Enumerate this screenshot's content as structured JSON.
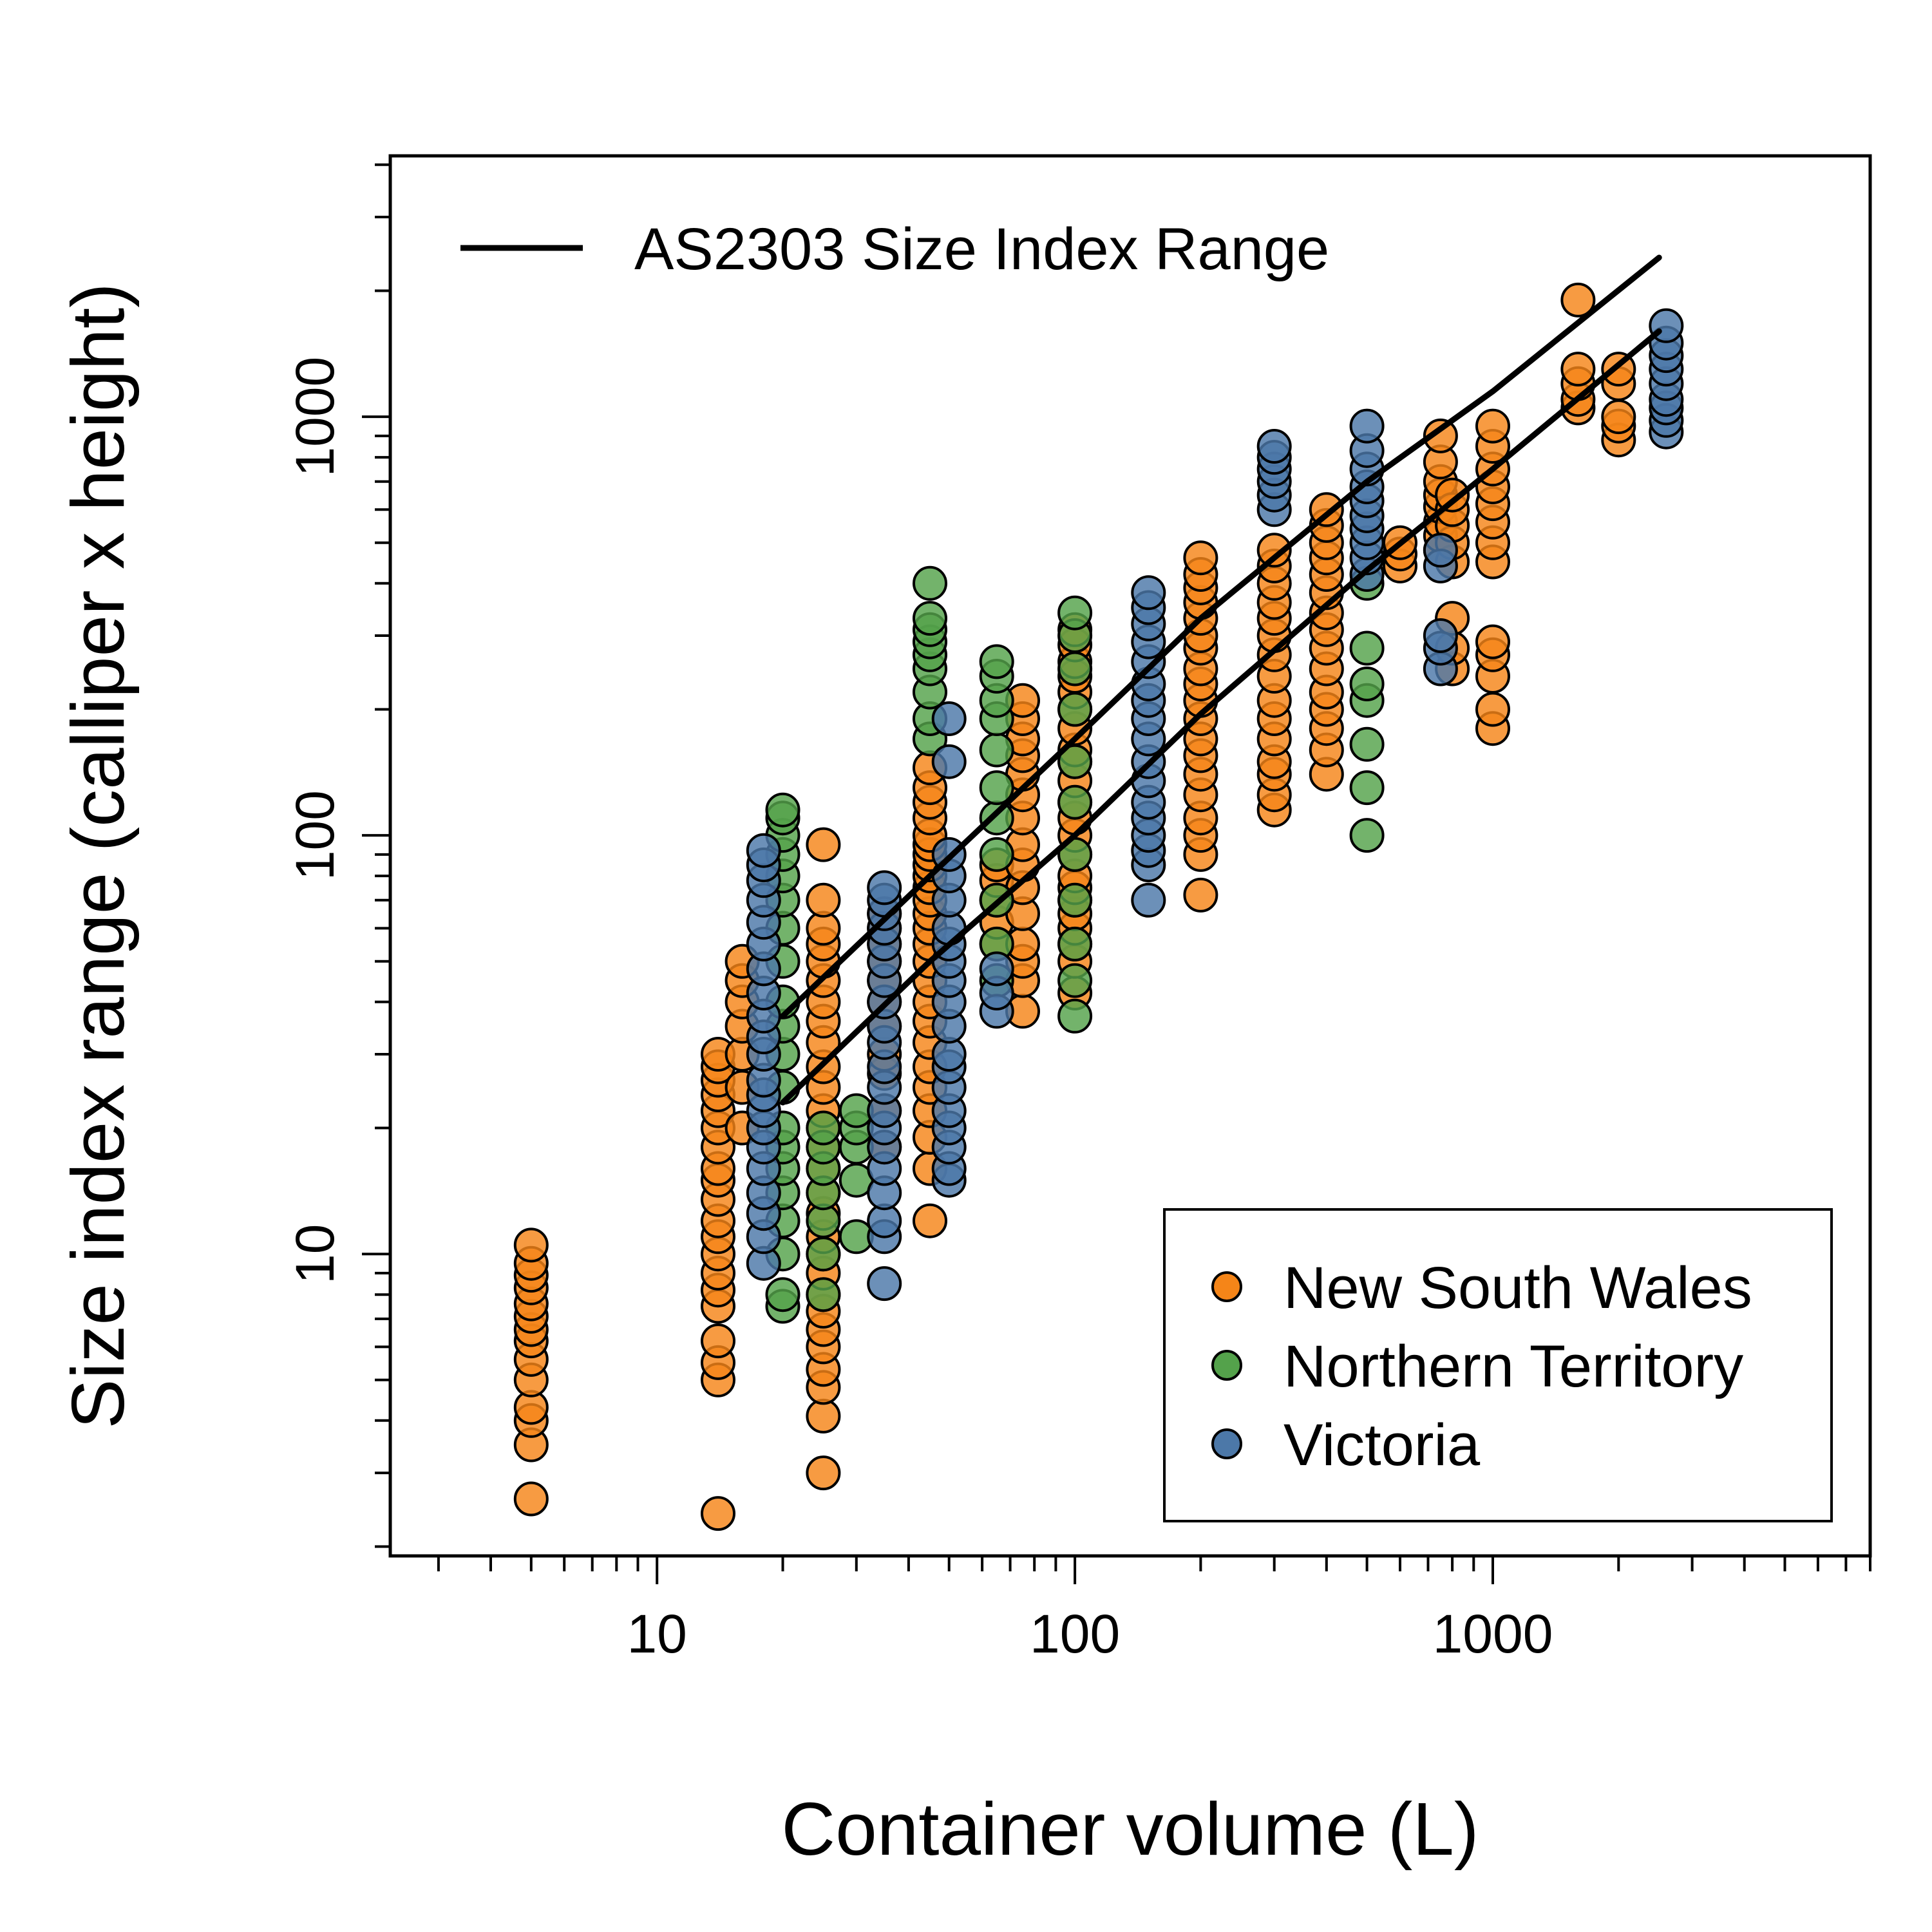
{
  "chart_data": {
    "type": "scatter",
    "title": "",
    "xlabel": "Container volume (L)",
    "ylabel": "Size index range  (calliper x height)",
    "x_scale": "log",
    "y_scale": "log",
    "xlim": [
      2.3,
      8000
    ],
    "ylim": [
      1.9,
      4200
    ],
    "x_ticks": [
      {
        "value": 10,
        "label": "10"
      },
      {
        "value": 100,
        "label": "100"
      },
      {
        "value": 1000,
        "label": "1000"
      }
    ],
    "y_ticks": [
      {
        "value": 10,
        "label": "10"
      },
      {
        "value": 100,
        "label": "100"
      },
      {
        "value": 1000,
        "label": "1000"
      }
    ],
    "grid": false,
    "legend": {
      "placement": "bottom-right",
      "entries": [
        {
          "name": "New South Wales",
          "color": "#F58518"
        },
        {
          "name": "Northern Territory",
          "color": "#54A24B"
        },
        {
          "name": "Victoria",
          "color": "#4C78A8"
        }
      ]
    },
    "line_legend": {
      "placement": "top-left",
      "label": "AS2303 Size Index Range"
    },
    "reference_lines": [
      {
        "points": [
          [
            20,
            37
          ],
          [
            45,
            80
          ],
          [
            100,
            170
          ],
          [
            200,
            330
          ],
          [
            500,
            700
          ],
          [
            1000,
            1150
          ],
          [
            2500,
            2400
          ]
        ]
      },
      {
        "points": [
          [
            20,
            23
          ],
          [
            45,
            50
          ],
          [
            100,
            100
          ],
          [
            200,
            195
          ],
          [
            500,
            430
          ],
          [
            1000,
            750
          ],
          [
            2500,
            1600
          ]
        ]
      }
    ],
    "series": [
      {
        "name": "New South Wales",
        "color": "#F58518",
        "groups": [
          {
            "x": 5,
            "y": [
              2.6,
              3.5,
              4.0,
              4.3,
              5.0,
              5.6,
              6.2,
              6.6,
              7.1,
              7.6,
              8.3,
              8.9,
              9.5,
              10.5
            ]
          },
          {
            "x": 14,
            "y": [
              2.4,
              5.0,
              5.5,
              6.2,
              7.5,
              8.2,
              9.0,
              10.0,
              11.0,
              12.0,
              13.5,
              15.0,
              16.0,
              18.0,
              20.0,
              22.0,
              24.0,
              26.0,
              28.0,
              30.0
            ]
          },
          {
            "x": 16,
            "y": [
              20,
              25,
              30,
              35,
              40,
              45,
              50
            ]
          },
          {
            "x": 25,
            "y": [
              3.0,
              4.1,
              4.8,
              5.3,
              6.0,
              6.6,
              7.3,
              8.0,
              9.0,
              10.0,
              11.0,
              12.5,
              14.0,
              16.0,
              18.0,
              20.0,
              22.0,
              25.0,
              28.0,
              32.0,
              36.0,
              40.0,
              45.0,
              50.0,
              55.0,
              60.0,
              70.0,
              95.0
            ]
          },
          {
            "x": 35,
            "y": [
              18,
              22,
              27,
              30,
              35,
              40,
              45,
              50,
              55,
              60,
              65
            ]
          },
          {
            "x": 45,
            "y": [
              12,
              16,
              19,
              22,
              25,
              28,
              32,
              36,
              40,
              45,
              50,
              55,
              60,
              65,
              70,
              75,
              80,
              85,
              90,
              95,
              100,
              110,
              120,
              130,
              145
            ]
          },
          {
            "x": 65,
            "y": [
              55,
              62,
              70,
              78,
              85
            ]
          },
          {
            "x": 75,
            "y": [
              38,
              45,
              50,
              55,
              65,
              75,
              85,
              95,
              110,
              125,
              140,
              155,
              170,
              190,
              210
            ]
          },
          {
            "x": 100,
            "y": [
              42,
              50,
              55,
              60,
              65,
              70,
              75,
              80,
              90,
              100,
              110,
              120,
              135,
              150,
              160,
              180,
              200,
              220,
              240,
              260,
              285,
              310
            ]
          },
          {
            "x": 200,
            "y": [
              72,
              90,
              100,
              110,
              125,
              140,
              155,
              170,
              190,
              210,
              230,
              250,
              280,
              300,
              330,
              360,
              390,
              420,
              460
            ]
          },
          {
            "x": 300,
            "y": [
              115,
              125,
              140,
              150,
              170,
              190,
              210,
              240,
              270,
              300,
              330,
              360,
              400,
              440,
              480
            ]
          },
          {
            "x": 400,
            "y": [
              140,
              160,
              180,
              200,
              220,
              250,
              280,
              310,
              340,
              380,
              420,
              460,
              500,
              550,
              600
            ]
          },
          {
            "x": 600,
            "y": [
              440,
              470,
              500
            ]
          },
          {
            "x": 750,
            "y": [
              480,
              520,
              560,
              610,
              650,
              700,
              780,
              900
            ]
          },
          {
            "x": 800,
            "y": [
              250,
              280,
              330,
              450,
              500,
              550,
              600,
              650
            ]
          },
          {
            "x": 1000,
            "y": [
              180,
              200,
              240,
              270,
              290,
              450,
              500,
              560,
              620,
              680,
              750,
              850,
              950
            ]
          },
          {
            "x": 1600,
            "y": [
              1050,
              1100,
              1200,
              1300,
              1900
            ]
          },
          {
            "x": 2000,
            "y": [
              880,
              950,
              1000,
              1200,
              1300
            ]
          }
        ]
      },
      {
        "name": "Northern Territory",
        "color": "#54A24B",
        "groups": [
          {
            "x": 20,
            "y": [
              7.5,
              8.0,
              10.0,
              12.0,
              14.0,
              16.0,
              18.0,
              20.0,
              25.0,
              30.0,
              35.0,
              40.0,
              50.0,
              60.0,
              70.0,
              80.0,
              90.0,
              100.0,
              110.0,
              115.0
            ]
          },
          {
            "x": 25,
            "y": [
              8,
              10,
              12,
              14,
              16,
              18,
              20
            ]
          },
          {
            "x": 30,
            "y": [
              11,
              15,
              18,
              20,
              22
            ]
          },
          {
            "x": 45,
            "y": [
              170,
              190,
              220,
              250,
              270,
              290,
              310,
              330,
              400
            ]
          },
          {
            "x": 65,
            "y": [
              45,
              55,
              70,
              90,
              110,
              130,
              160,
              190,
              210,
              240,
              260
            ]
          },
          {
            "x": 100,
            "y": [
              37,
              45,
              55,
              70,
              90,
              120,
              150,
              200,
              250,
              300,
              340
            ]
          },
          {
            "x": 500,
            "y": [
              100,
              130,
              165,
              210,
              230,
              280,
              400
            ]
          }
        ]
      },
      {
        "name": "Victoria",
        "color": "#4C78A8",
        "groups": [
          {
            "x": 18,
            "y": [
              9.5,
              11.0,
              12.5,
              14.0,
              16.0,
              18.0,
              20.0,
              22.0,
              24.0,
              26.0,
              30.0,
              33.0,
              37.0,
              42.0,
              48.0,
              55.0,
              62.0,
              70.0,
              78.0,
              85.0,
              92.0
            ]
          },
          {
            "x": 35,
            "y": [
              8.5,
              11,
              12,
              14,
              16,
              18,
              20,
              22,
              25,
              28,
              32,
              35,
              40,
              45,
              50,
              55,
              60,
              65,
              70,
              75
            ]
          },
          {
            "x": 50,
            "y": [
              15,
              16,
              18,
              20,
              22,
              25,
              28,
              30,
              35,
              40,
              45,
              50,
              55,
              60,
              70,
              80,
              90,
              150,
              190
            ]
          },
          {
            "x": 65,
            "y": [
              38,
              42,
              48
            ]
          },
          {
            "x": 150,
            "y": [
              70,
              85,
              92,
              100,
              110,
              120,
              135,
              150,
              170,
              190,
              210,
              230,
              260,
              290,
              320,
              350,
              380
            ]
          },
          {
            "x": 300,
            "y": [
              600,
              650,
              700,
              750,
              800,
              850
            ]
          },
          {
            "x": 500,
            "y": [
              420,
              460,
              500,
              540,
              580,
              630,
              680,
              750,
              830,
              950
            ]
          },
          {
            "x": 750,
            "y": [
              250,
              280,
              300,
              440,
              480
            ]
          },
          {
            "x": 2600,
            "y": [
              920,
              980,
              1050,
              1100,
              1200,
              1300,
              1400,
              1500,
              1650
            ]
          }
        ]
      }
    ]
  }
}
